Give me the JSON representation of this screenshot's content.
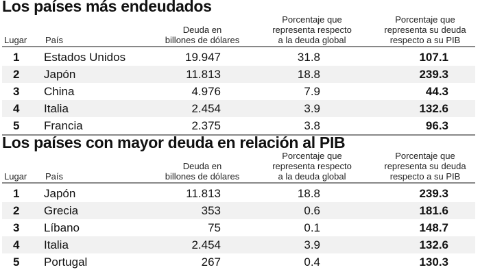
{
  "headers": {
    "rank": "Lugar",
    "country": "País",
    "debt": [
      "Deuda en",
      "billones de dólares"
    ],
    "global_pct": [
      "Porcentaje que",
      "representa respecto",
      "a la deuda global"
    ],
    "gdp_pct": [
      "Porcentaje que",
      "representa su deuda",
      "respecto a su PIB"
    ]
  },
  "tables": [
    {
      "title": "Los países más endeudados",
      "rows": [
        {
          "rank": "1",
          "country": "Estados Unidos",
          "debt": "19.947",
          "global_pct": "31.8",
          "gdp_pct": "107.1"
        },
        {
          "rank": "2",
          "country": "Japón",
          "debt": "11.813",
          "global_pct": "18.8",
          "gdp_pct": "239.3"
        },
        {
          "rank": "3",
          "country": "China",
          "debt": "4.976",
          "global_pct": "7.9",
          "gdp_pct": "44.3"
        },
        {
          "rank": "4",
          "country": "Italia",
          "debt": "2.454",
          "global_pct": "3.9",
          "gdp_pct": "132.6"
        },
        {
          "rank": "5",
          "country": "Francia",
          "debt": "2.375",
          "global_pct": "3.8",
          "gdp_pct": "96.3"
        }
      ]
    },
    {
      "title": "Los países con mayor deuda en relación al PIB",
      "rows": [
        {
          "rank": "1",
          "country": "Japón",
          "debt": "11.813",
          "global_pct": "18.8",
          "gdp_pct": "239.3"
        },
        {
          "rank": "2",
          "country": "Grecia",
          "debt": "353",
          "global_pct": "0.6",
          "gdp_pct": "181.6"
        },
        {
          "rank": "3",
          "country": "Líbano",
          "debt": "75",
          "global_pct": "0.1",
          "gdp_pct": "148.7"
        },
        {
          "rank": "4",
          "country": "Italia",
          "debt": "2.454",
          "global_pct": "3.9",
          "gdp_pct": "132.6"
        },
        {
          "rank": "5",
          "country": "Portugal",
          "debt": "267",
          "global_pct": "0.4",
          "gdp_pct": "130.3"
        }
      ]
    }
  ],
  "colors": {
    "alt_row": "#f1f1f1",
    "rule": "#888888"
  }
}
